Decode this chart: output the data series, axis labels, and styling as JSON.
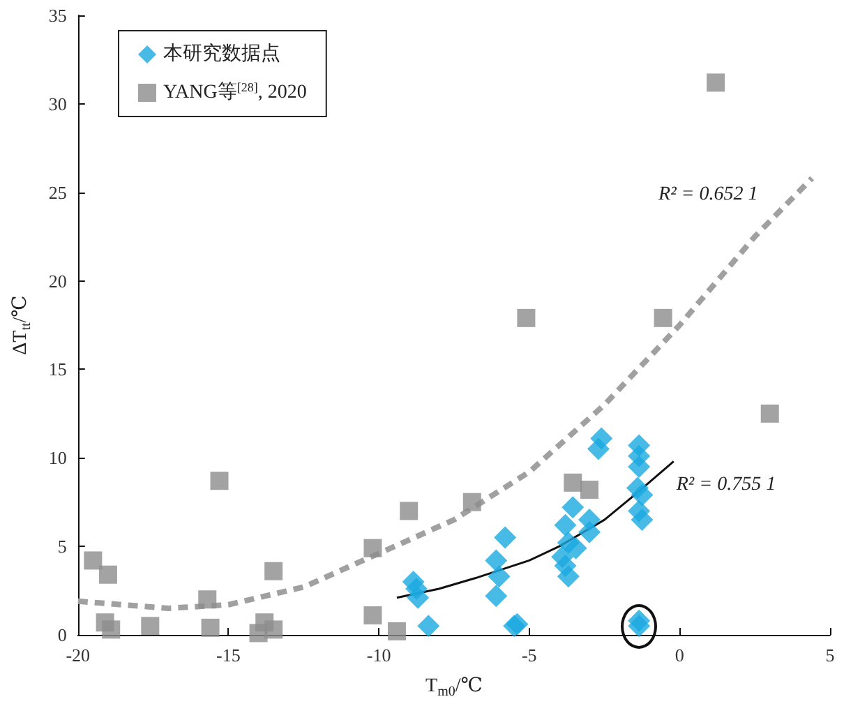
{
  "chart_data": {
    "type": "scatter",
    "xlabel": "T$_{m0}$/℃",
    "ylabel": "ΔT$_{tt}$/℃",
    "xlim": [
      -20,
      5
    ],
    "xticks": [
      -20,
      -15,
      -10,
      -5,
      0,
      5
    ],
    "ylim": [
      0,
      35
    ],
    "yticks": [
      0,
      5,
      10,
      15,
      20,
      25,
      30,
      35
    ],
    "grid": false,
    "legend": "top left",
    "series": [
      {
        "name": "本研究数据点",
        "color": "#1aa9e0",
        "marker": "diamond",
        "x": [
          -8.85,
          -8.75,
          -8.7,
          -8.35,
          -5.8,
          -6.1,
          -6.0,
          -6.1,
          -5.4,
          -5.5,
          -3.55,
          -3.8,
          -3.7,
          -3.45,
          -3.9,
          -3.8,
          -3.7,
          -3.0,
          -3.0,
          -2.6,
          -2.7,
          -1.35,
          -1.35,
          -1.35,
          -1.4,
          -1.25,
          -1.35,
          -1.25,
          -1.35,
          -1.35
        ],
        "values": [
          3.0,
          2.6,
          2.1,
          0.5,
          5.5,
          4.2,
          3.3,
          2.2,
          0.6,
          0.5,
          7.2,
          6.2,
          5.2,
          4.9,
          4.4,
          3.9,
          3.3,
          6.5,
          5.8,
          11.1,
          10.5,
          10.7,
          10.1,
          9.5,
          8.3,
          7.9,
          7.0,
          6.5,
          0.8,
          0.5
        ]
      },
      {
        "name": "YANG等$^{[28]}$, 2020",
        "color": "#8c8c8c",
        "marker": "square",
        "x": [
          -19.5,
          -19.0,
          -19.1,
          -18.9,
          -17.6,
          -15.3,
          -15.7,
          -15.6,
          -14.0,
          -13.8,
          -13.5,
          -13.5,
          -10.2,
          -10.2,
          -9.4,
          -9.0,
          -6.9,
          1.2,
          -5.1,
          -0.55,
          3.0,
          -3.55,
          -3.0
        ],
        "values": [
          4.2,
          3.4,
          0.7,
          0.3,
          0.5,
          8.7,
          2.0,
          0.4,
          0.1,
          0.7,
          0.3,
          3.6,
          4.9,
          1.1,
          0.2,
          7.0,
          7.5,
          31.2,
          17.9,
          17.9,
          12.5,
          8.6,
          8.2
        ]
      },
      {
        "type": "line",
        "color": "#a0a0a0",
        "line_style": "dashed",
        "marker": "none",
        "x": [
          -20,
          -17,
          -15,
          -12.5,
          -10,
          -7.5,
          -5,
          -2.5,
          0,
          2.5,
          4.4
        ],
        "values": [
          1.9,
          1.5,
          1.7,
          2.7,
          4.6,
          6.5,
          9.2,
          13,
          17.5,
          22.5,
          25.8
        ]
      },
      {
        "type": "line",
        "color": "#111111",
        "line_style": "solid",
        "marker": "none",
        "x": [
          -9.4,
          -8,
          -6.8,
          -5,
          -4,
          -2.5,
          -1.5,
          -0.2
        ],
        "values": [
          2.1,
          2.6,
          3.2,
          4.2,
          5.0,
          6.5,
          7.9,
          9.8
        ]
      }
    ],
    "annotations": [
      "R² = 0.652 1",
      "R² = 0.755 1"
    ]
  }
}
